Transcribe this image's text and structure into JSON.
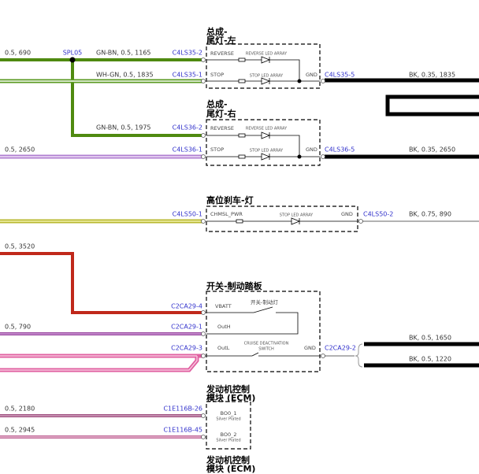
{
  "tail_left": {
    "title": [
      "总成-",
      "尾灯-左"
    ],
    "splice": "SPL05",
    "wires_in": [
      "0.5, 690",
      "GN-BN, 0.5, 1165",
      "WH-GN, 0.5, 1835"
    ],
    "pins": [
      "C4LS35-2",
      "C4LS35-1",
      "C4LS35-5"
    ],
    "labels": [
      "REVERSE",
      "REVERSE LED ARRAY",
      "STOP",
      "STOP LED ARRAY",
      "GND"
    ],
    "ground_wire": "BK, 0.35, 1835"
  },
  "tail_right": {
    "title": [
      "总成-",
      "尾灯-右"
    ],
    "wires_in": [
      "GN-BN, 0.5, 1975",
      "0.5, 2650"
    ],
    "pins": [
      "C4LS36-2",
      "C4LS36-1",
      "C4LS36-5"
    ],
    "labels": [
      "REVERSE",
      "REVERSE LED ARRAY",
      "STOP",
      "STOP LED ARRAY",
      "GND"
    ],
    "ground_wire": "BK, 0.35, 2650"
  },
  "chmsl": {
    "title": "高位刹车-灯",
    "pins": [
      "C4LS50-1",
      "C4LS50-2"
    ],
    "labels": [
      "CHMSL_PWR",
      "STOP LED ARRAY",
      "GND"
    ],
    "ground_wire": "BK, 0.75, 890"
  },
  "brake_switch": {
    "title": "开关-制动踏板",
    "wires_in": [
      "0.5, 3520",
      "0.5, 790"
    ],
    "pins": [
      "C2CA29-4",
      "C2CA29-1",
      "C2CA29-3",
      "C2CA29-2"
    ],
    "labels": [
      "VBATT",
      "开关-制动灯",
      "OutH",
      "OutL",
      "CRUISE DEACTIVATION",
      "SWITCH",
      "GND"
    ],
    "ground_wires": [
      "BK, 0.5, 1650",
      "BK, 0.5, 1220"
    ]
  },
  "ecm": {
    "title": [
      "发动机控制",
      "模块 (ECM)"
    ],
    "wires_in": [
      "0.5, 2180",
      "0.5, 2945"
    ],
    "pins": [
      "C1E116B-26",
      "C1E116B-45"
    ],
    "labels": [
      "BO0_1",
      "Silver Plated",
      "BO0_2",
      "Silver Plated"
    ],
    "footer_title": [
      "发动机控制",
      "模块 (ECM)"
    ]
  }
}
